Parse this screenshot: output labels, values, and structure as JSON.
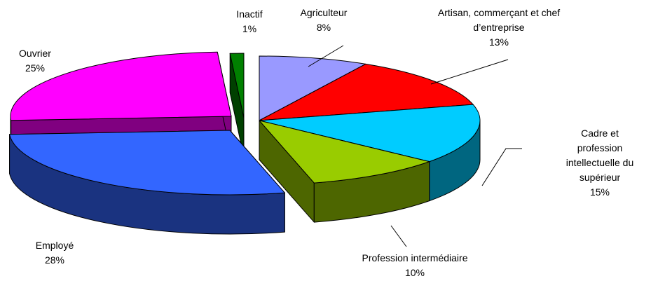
{
  "chart_data": {
    "type": "pie3d",
    "categories": [
      "Agriculteur",
      "Artisan, commerçant et chef\nd’entreprise",
      "Cadre et profession\nintellectuelle du supérieur",
      "Profession intermédiaire",
      "Employé",
      "Ouvrier",
      "Inactif"
    ],
    "values": [
      8,
      13,
      15,
      10,
      28,
      25,
      1
    ],
    "value_labels": [
      "8%",
      "13%",
      "15%",
      "10%",
      "28%",
      "25%",
      "1%"
    ],
    "colors": [
      "#9999ff",
      "#ff0000",
      "#00ccff",
      "#99cc00",
      "#3366ff",
      "#ff00ff",
      "#008000"
    ]
  }
}
